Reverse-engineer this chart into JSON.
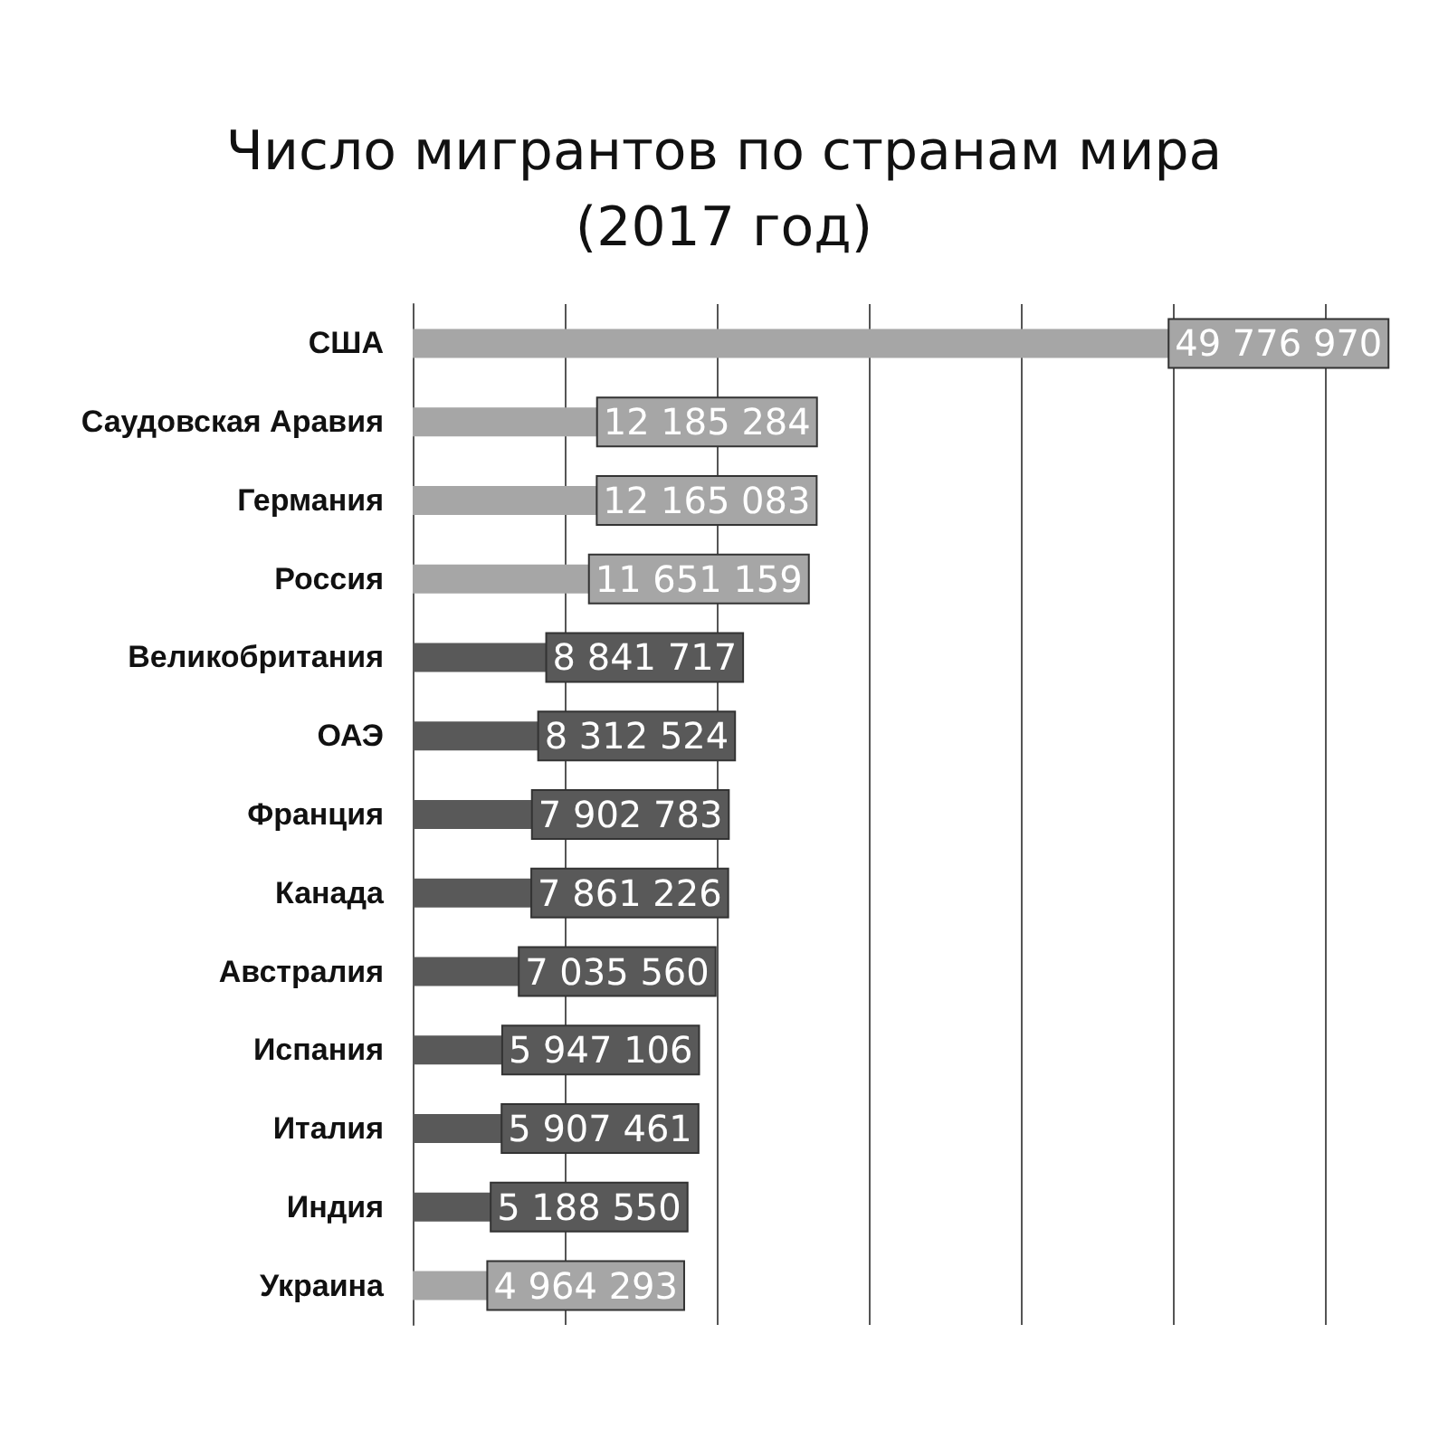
{
  "chart_data": {
    "type": "bar",
    "orientation": "horizontal",
    "title": "Число мигрантов по странам мира\n(2017 год)",
    "categories": [
      "США",
      "Саудовская Аравия",
      "Германия",
      "Россия",
      "Великобритания",
      "ОАЭ",
      "Франция",
      "Канада",
      "Австралия",
      "Испания",
      "Италия",
      "Индия",
      "Украина"
    ],
    "values": [
      49776970,
      12185284,
      12165083,
      11651159,
      8841717,
      8312524,
      7902783,
      7861226,
      7035560,
      5947106,
      5907461,
      5188550,
      4964293
    ],
    "value_labels": [
      "49 776 970",
      "12 185 284",
      "12 165 083",
      "11 651 159",
      "8 841 717",
      "8 312 524",
      "7 902 783",
      "7 861 226",
      "7 035 560",
      "5 947 106",
      "5 907 461",
      "5 188 550",
      "4 964 293"
    ],
    "colors": [
      "#a6a6a6",
      "#a6a6a6",
      "#a6a6a6",
      "#a6a6a6",
      "#595959",
      "#595959",
      "#595959",
      "#595959",
      "#595959",
      "#595959",
      "#595959",
      "#595959",
      "#a6a6a6"
    ],
    "xlim": [
      0,
      60000000
    ],
    "xticks": [
      {
        "value": 0,
        "label": null
      },
      {
        "value": 10000000,
        "label": null
      },
      {
        "value": 20000000,
        "label": null
      },
      {
        "value": 30000000,
        "label": null
      },
      {
        "value": 40000000,
        "label": null
      },
      {
        "value": 50000000,
        "label": null
      },
      {
        "value": 60000000,
        "label": null
      }
    ],
    "grid": "x",
    "tick_labels": "y"
  }
}
